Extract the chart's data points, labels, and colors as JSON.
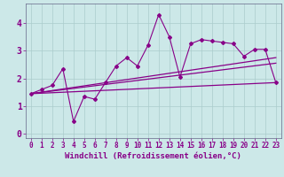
{
  "title": "",
  "xlabel": "Windchill (Refroidissement éolien,°C)",
  "ylabel": "",
  "bg_color": "#cce8e8",
  "grid_color": "#aacccc",
  "line_color": "#880088",
  "xlim": [
    -0.5,
    23.5
  ],
  "ylim": [
    -0.15,
    4.7
  ],
  "xticks": [
    0,
    1,
    2,
    3,
    4,
    5,
    6,
    7,
    8,
    9,
    10,
    11,
    12,
    13,
    14,
    15,
    16,
    17,
    18,
    19,
    20,
    21,
    22,
    23
  ],
  "yticks": [
    0,
    1,
    2,
    3,
    4
  ],
  "series1_x": [
    0,
    1,
    2,
    3,
    4,
    5,
    6,
    7,
    8,
    9,
    10,
    11,
    12,
    13,
    14,
    15,
    16,
    17,
    18,
    19,
    20,
    21,
    22,
    23
  ],
  "series1_y": [
    1.45,
    1.6,
    1.75,
    2.35,
    0.45,
    1.35,
    1.25,
    1.85,
    2.45,
    2.75,
    2.45,
    3.2,
    4.3,
    3.5,
    2.05,
    3.25,
    3.4,
    3.35,
    3.3,
    3.25,
    2.8,
    3.05,
    3.05,
    1.85
  ],
  "series2_x": [
    0,
    23
  ],
  "series2_y": [
    1.45,
    1.85
  ],
  "series3_x": [
    0,
    23
  ],
  "series3_y": [
    1.45,
    2.75
  ],
  "series4_x": [
    0,
    23
  ],
  "series4_y": [
    1.45,
    2.55
  ],
  "xlabel_fontsize": 6.5,
  "tick_fontsize": 5.5,
  "font_color": "#880088",
  "spine_color": "#666688"
}
